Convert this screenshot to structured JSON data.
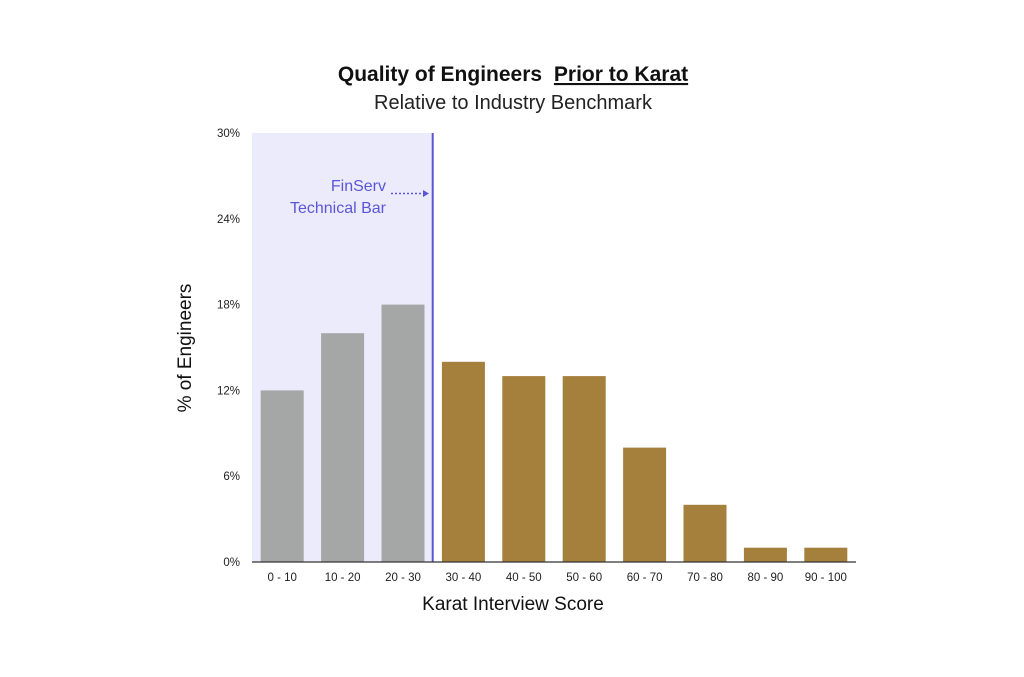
{
  "chart_data": {
    "type": "bar",
    "title": "Quality of Engineers",
    "title_emphasis": "Prior to Karat",
    "subtitle": "Relative to Industry Benchmark",
    "xlabel": "Karat Interview Score",
    "ylabel": "% of Engineers",
    "categories": [
      "0 - 10",
      "10 - 20",
      "20 - 30",
      "30 - 40",
      "40 - 50",
      "50 - 60",
      "60 - 70",
      "70 - 80",
      "80 - 90",
      "90 - 100"
    ],
    "values": [
      12,
      16,
      18,
      14,
      13,
      13,
      8,
      4,
      1,
      1
    ],
    "ylim": [
      0,
      30
    ],
    "yticks": [
      0,
      6,
      12,
      18,
      24,
      30
    ],
    "ytick_labels": [
      "0%",
      "6%",
      "12%",
      "18%",
      "24%",
      "30%"
    ],
    "grid": false,
    "colors": {
      "below_bar": "#a5a7a6",
      "above_bar": "#a5803d",
      "shade": "#ecebfc",
      "threshold_line": "#5b56d6"
    },
    "threshold_index": 3,
    "annotation": {
      "line1": "FinServ",
      "line2": "Technical Bar"
    }
  }
}
